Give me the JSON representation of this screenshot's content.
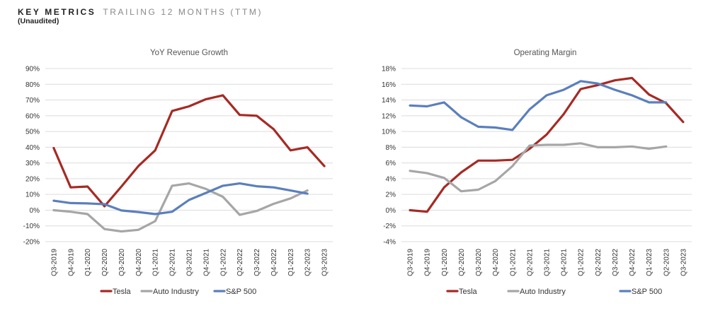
{
  "header": {
    "title_bold": "KEY METRICS",
    "title_light": "TRAILING 12 MONTHS (TTM)",
    "subtitle": "(Unaudited)"
  },
  "colors": {
    "tesla": "#a62a24",
    "auto": "#a6a6a6",
    "sp500": "#5b7fbd",
    "grid": "#dcdcdc"
  },
  "chart_data": [
    {
      "type": "line",
      "title": "YoY Revenue Growth",
      "xlabel": "",
      "ylabel": "",
      "ylim": [
        -20,
        90
      ],
      "ystep": 10,
      "yunit": "%",
      "grid": true,
      "legend_position": "bottom",
      "categories": [
        "Q3-2019",
        "Q4-2019",
        "Q1-2020",
        "Q2-2020",
        "Q3-2020",
        "Q4-2020",
        "Q1-2021",
        "Q2-2021",
        "Q3-2021",
        "Q4-2021",
        "Q1-2022",
        "Q2-2022",
        "Q3-2022",
        "Q4-2022",
        "Q1-2023",
        "Q2-2023",
        "Q3-2023"
      ],
      "series": [
        {
          "name": "Tesla",
          "color_key": "tesla",
          "values": [
            39.5,
            14.5,
            15,
            2.5,
            15,
            28,
            38,
            63,
            66,
            70.5,
            73,
            60.5,
            60,
            51.5,
            38,
            40,
            28
          ]
        },
        {
          "name": "Auto Industry",
          "color_key": "auto",
          "values": [
            0,
            -1,
            -2.5,
            -12,
            -13.5,
            -12.5,
            -7,
            15.5,
            17,
            13.5,
            8.5,
            -3,
            -0.5,
            4,
            7.5,
            12.5,
            null
          ]
        },
        {
          "name": "S&P 500",
          "color_key": "sp500",
          "values": [
            6,
            4.5,
            4.3,
            3.8,
            -0.2,
            -1.2,
            -2.5,
            -1,
            6.5,
            11,
            15.5,
            17,
            15.2,
            14.5,
            12.5,
            10.5,
            null
          ]
        }
      ]
    },
    {
      "type": "line",
      "title": "Operating Margin",
      "xlabel": "",
      "ylabel": "",
      "ylim": [
        -4,
        18
      ],
      "ystep": 2,
      "yunit": "%",
      "grid": true,
      "legend_position": "bottom",
      "categories": [
        "Q3-2019",
        "Q4-2019",
        "Q1-2020",
        "Q2-2020",
        "Q3-2020",
        "Q4-2020",
        "Q1-2021",
        "Q2-2021",
        "Q3-2021",
        "Q4-2021",
        "Q1-2022",
        "Q2-2022",
        "Q3-2022",
        "Q4-2022",
        "Q1-2023",
        "Q2-2023",
        "Q3-2023"
      ],
      "series": [
        {
          "name": "Tesla",
          "color_key": "tesla",
          "values": [
            0,
            -0.2,
            2.9,
            4.8,
            6.3,
            6.3,
            6.4,
            7.8,
            9.6,
            12.2,
            15.4,
            15.9,
            16.5,
            16.8,
            14.7,
            13.6,
            11.2
          ]
        },
        {
          "name": "Auto Industry",
          "color_key": "auto",
          "values": [
            5,
            4.7,
            4.1,
            2.4,
            2.6,
            3.7,
            5.6,
            8.2,
            8.3,
            8.3,
            8.5,
            8,
            8,
            8.1,
            7.8,
            8.1,
            null
          ]
        },
        {
          "name": "S&P 500",
          "color_key": "sp500",
          "values": [
            13.3,
            13.2,
            13.7,
            11.8,
            10.6,
            10.5,
            10.2,
            12.8,
            14.6,
            15.3,
            16.4,
            16.1,
            15.3,
            14.6,
            13.7,
            13.7,
            null
          ]
        }
      ]
    }
  ]
}
